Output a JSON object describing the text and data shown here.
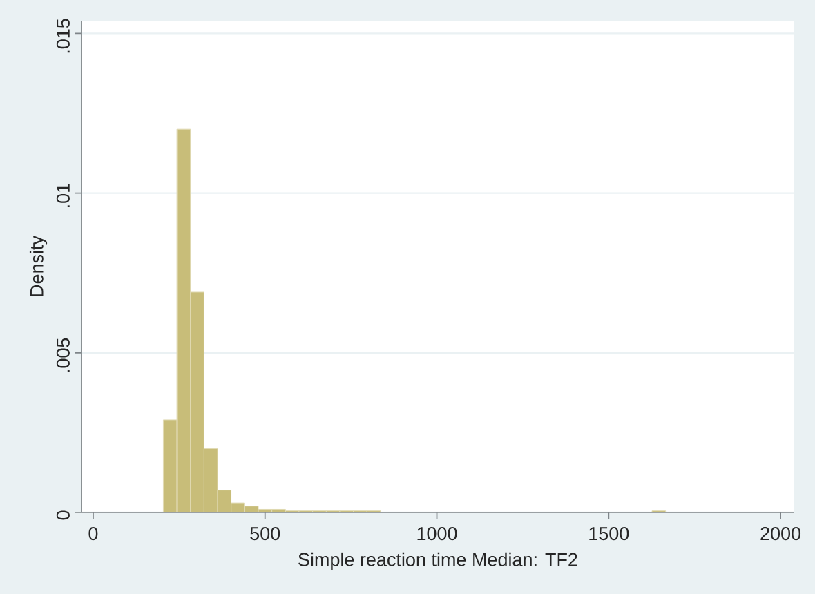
{
  "chart_data": {
    "type": "histogram",
    "xlabel": "Simple reaction time Median: TF2",
    "ylabel": "Density",
    "bins": [
      204,
      243.5,
      283,
      322.5,
      362,
      401.5,
      441,
      480.5,
      520,
      559.5,
      599,
      638.5,
      678,
      717.5,
      757,
      796.5,
      836,
      875.5,
      915,
      954.5,
      994,
      1033.5,
      1073,
      1112.5,
      1152,
      1191.5,
      1231,
      1270.5,
      1310,
      1349.5,
      1389,
      1428.5,
      1468,
      1507.5,
      1547,
      1586.5,
      1626,
      1665.5
    ],
    "values": [
      0.0029,
      0.012,
      0.0069,
      0.002,
      0.0007,
      0.0003,
      0.0002,
      0.0001,
      0.0001,
      5e-05,
      5e-05,
      5e-05,
      5e-05,
      5e-05,
      5e-05,
      5e-05,
      0,
      0,
      0,
      0,
      0,
      0,
      0,
      0,
      0,
      0,
      0,
      0,
      0,
      0,
      0,
      0,
      0,
      0,
      0,
      0,
      5e-05
    ],
    "color": "#c8bd79",
    "xlim": [
      -34,
      2040
    ],
    "ylim": [
      0,
      0.0154
    ],
    "xticks": [
      0,
      500,
      1000,
      1500,
      2000
    ],
    "yticks": [
      0,
      {
        "value": 0.005,
        "label": ".005"
      },
      {
        "value": 0.01,
        "label": ".01"
      },
      {
        "value": 0.015,
        "label": ".015"
      }
    ],
    "grid": "y"
  }
}
